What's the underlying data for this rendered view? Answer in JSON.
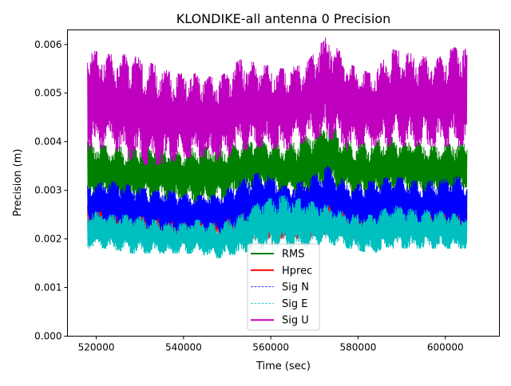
{
  "chart_data": {
    "type": "line",
    "title": "KLONDIKE-all antenna 0 Precision",
    "xlabel": "Time (sec)",
    "ylabel": "Precision (m)",
    "xlim": [
      513400,
      612400
    ],
    "ylim": [
      0,
      0.0063
    ],
    "xticks": [
      520000,
      540000,
      560000,
      580000,
      600000
    ],
    "xtick_labels": [
      "520000",
      "540000",
      "560000",
      "580000",
      "600000"
    ],
    "yticks": [
      0,
      0.001,
      0.002,
      0.003,
      0.004,
      0.005,
      0.006
    ],
    "ytick_labels": [
      "0.000",
      "0.001",
      "0.002",
      "0.003",
      "0.004",
      "0.005",
      "0.006"
    ],
    "grid": false,
    "legend_placement": "bottom-center",
    "x": [
      518000,
      523000,
      528000,
      533000,
      538000,
      543000,
      548000,
      553000,
      558000,
      563000,
      568000,
      573000,
      578000,
      583000,
      588000,
      593000,
      598000,
      603000,
      605000
    ],
    "series": [
      {
        "name": "RMS",
        "color": "#008000",
        "style": "solid",
        "low": [
          0.0028,
          0.0028,
          0.0027,
          0.0028,
          0.0028,
          0.0027,
          0.0027,
          0.0029,
          0.0029,
          0.0029,
          0.0028,
          0.003,
          0.0029,
          0.0028,
          0.0029,
          0.0029,
          0.0029,
          0.0029,
          0.0029
        ],
        "high": [
          0.004,
          0.0039,
          0.0039,
          0.004,
          0.0038,
          0.0039,
          0.0039,
          0.004,
          0.0041,
          0.0039,
          0.0041,
          0.0044,
          0.004,
          0.004,
          0.0041,
          0.004,
          0.0039,
          0.004,
          0.004
        ]
      },
      {
        "name": "Hprec",
        "color": "#ff0000",
        "style": "solid",
        "low": [
          0.002,
          0.002,
          0.002,
          0.002,
          0.002,
          0.002,
          0.002,
          0.002,
          0.002,
          0.002,
          0.002,
          0.0021,
          0.002,
          0.002,
          0.0021,
          0.0021,
          0.0021,
          0.0021,
          0.0021
        ],
        "high": [
          0.0027,
          0.0027,
          0.0026,
          0.0026,
          0.0025,
          0.0025,
          0.0025,
          0.0026,
          0.0027,
          0.0026,
          0.0026,
          0.0028,
          0.0026,
          0.0026,
          0.0027,
          0.0027,
          0.0027,
          0.0027,
          0.0027
        ]
      },
      {
        "name": "Sig N",
        "color": "#0000ff",
        "style": "dashed",
        "low": [
          0.0024,
          0.0023,
          0.0022,
          0.0022,
          0.0021,
          0.0021,
          0.0021,
          0.0022,
          0.0022,
          0.0022,
          0.0022,
          0.0023,
          0.0022,
          0.0022,
          0.0022,
          0.0022,
          0.0022,
          0.0022,
          0.0022
        ],
        "high": [
          0.0031,
          0.0032,
          0.0031,
          0.003,
          0.003,
          0.0029,
          0.0029,
          0.0032,
          0.0034,
          0.0031,
          0.0032,
          0.0035,
          0.0031,
          0.0032,
          0.0033,
          0.0032,
          0.0032,
          0.0033,
          0.0032
        ]
      },
      {
        "name": "Sig E",
        "color": "#00bfbf",
        "style": "dashed",
        "low": [
          0.0018,
          0.0018,
          0.0017,
          0.0017,
          0.0017,
          0.0017,
          0.0016,
          0.0017,
          0.0018,
          0.0018,
          0.0018,
          0.0019,
          0.0018,
          0.0017,
          0.0018,
          0.0018,
          0.0018,
          0.0018,
          0.0018
        ],
        "high": [
          0.0026,
          0.0025,
          0.0025,
          0.0024,
          0.0023,
          0.0024,
          0.0023,
          0.0025,
          0.0028,
          0.0029,
          0.0028,
          0.0027,
          0.0025,
          0.0025,
          0.0027,
          0.0026,
          0.0026,
          0.0025,
          0.0025
        ]
      },
      {
        "name": "Sig U",
        "color": "#bf00bf",
        "style": "solid",
        "low": [
          0.0038,
          0.0039,
          0.0036,
          0.0035,
          0.0036,
          0.0037,
          0.0036,
          0.0038,
          0.0039,
          0.0038,
          0.004,
          0.0041,
          0.0038,
          0.0039,
          0.0039,
          0.0039,
          0.0039,
          0.0039,
          0.004
        ],
        "high": [
          0.0059,
          0.0058,
          0.0058,
          0.0056,
          0.0054,
          0.0054,
          0.0053,
          0.0057,
          0.0056,
          0.0055,
          0.0056,
          0.0062,
          0.0056,
          0.0054,
          0.0059,
          0.0058,
          0.0057,
          0.006,
          0.0059
        ]
      }
    ]
  }
}
